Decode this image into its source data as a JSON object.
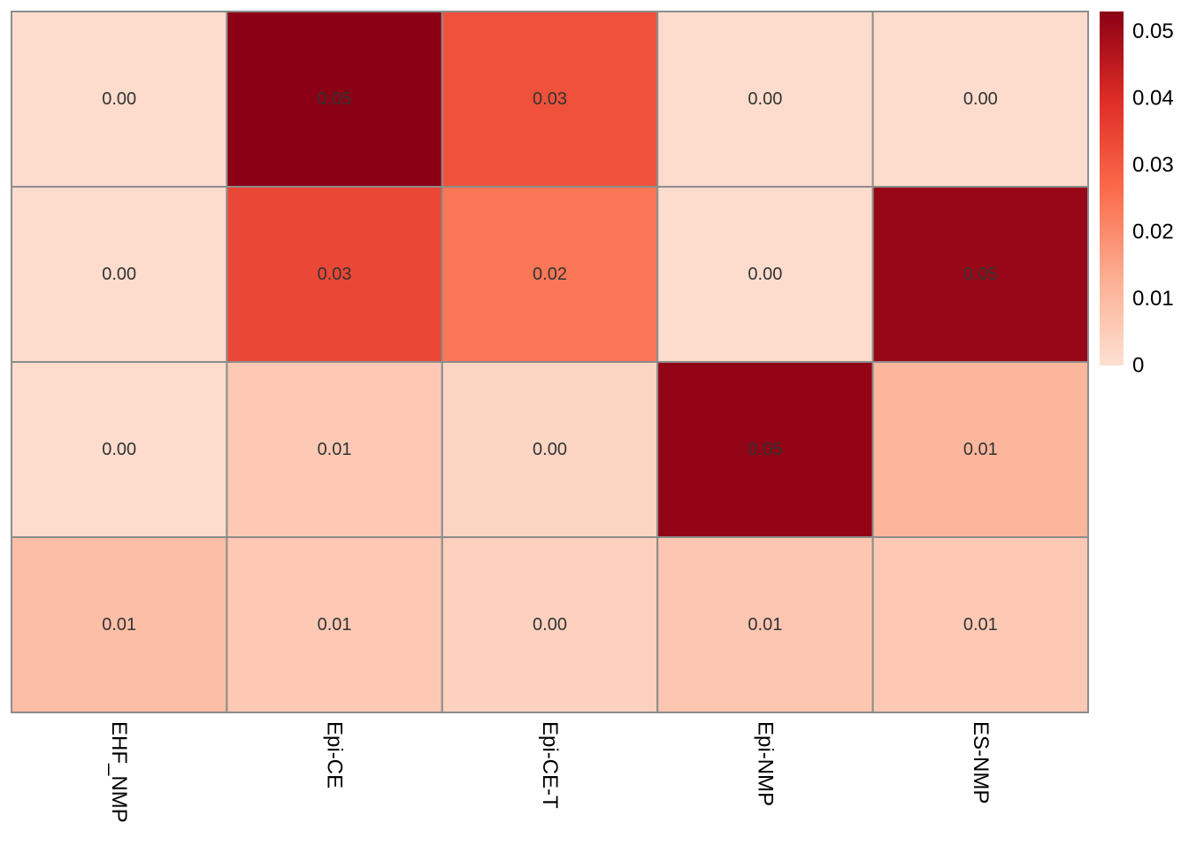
{
  "chart_data": {
    "type": "heatmap",
    "title": "",
    "xlabel": "",
    "ylabel": "",
    "columns": [
      "EHF_NMP",
      "Epi-CE",
      "Epi-CE-T",
      "Epi-NMP",
      "ES-NMP"
    ],
    "rows": [
      "",
      "",
      "",
      ""
    ],
    "values": [
      [
        0.001,
        0.053,
        0.032,
        0.001,
        0.001
      ],
      [
        0.001,
        0.034,
        0.024,
        0.001,
        0.051
      ],
      [
        0.001,
        0.006,
        0.003,
        0.052,
        0.011
      ],
      [
        0.009,
        0.006,
        0.004,
        0.007,
        0.006
      ]
    ],
    "cell_labels": [
      [
        "0.00",
        "0.05",
        "0.03",
        "0.00",
        "0.00"
      ],
      [
        "0.00",
        "0.03",
        "0.02",
        "0.00",
        "0.05"
      ],
      [
        "0.00",
        "0.01",
        "0.00",
        "0.05",
        "0.01"
      ],
      [
        "0.01",
        "0.01",
        "0.00",
        "0.01",
        "0.01"
      ]
    ],
    "color_scale": {
      "min": 0,
      "max": 0.053,
      "colors": [
        "#fde0d2",
        "#fcae91",
        "#fb6a4a",
        "#de2d26",
        "#8b0014"
      ]
    },
    "colorbar": {
      "ticks": [
        0,
        0.01,
        0.02,
        0.03,
        0.04,
        0.05
      ],
      "tick_labels": [
        "0",
        "0.01",
        "0.02",
        "0.03",
        "0.04",
        "0.05"
      ]
    },
    "cell_border_color": "#8c8c8c",
    "cell_label_color": "#333333"
  }
}
